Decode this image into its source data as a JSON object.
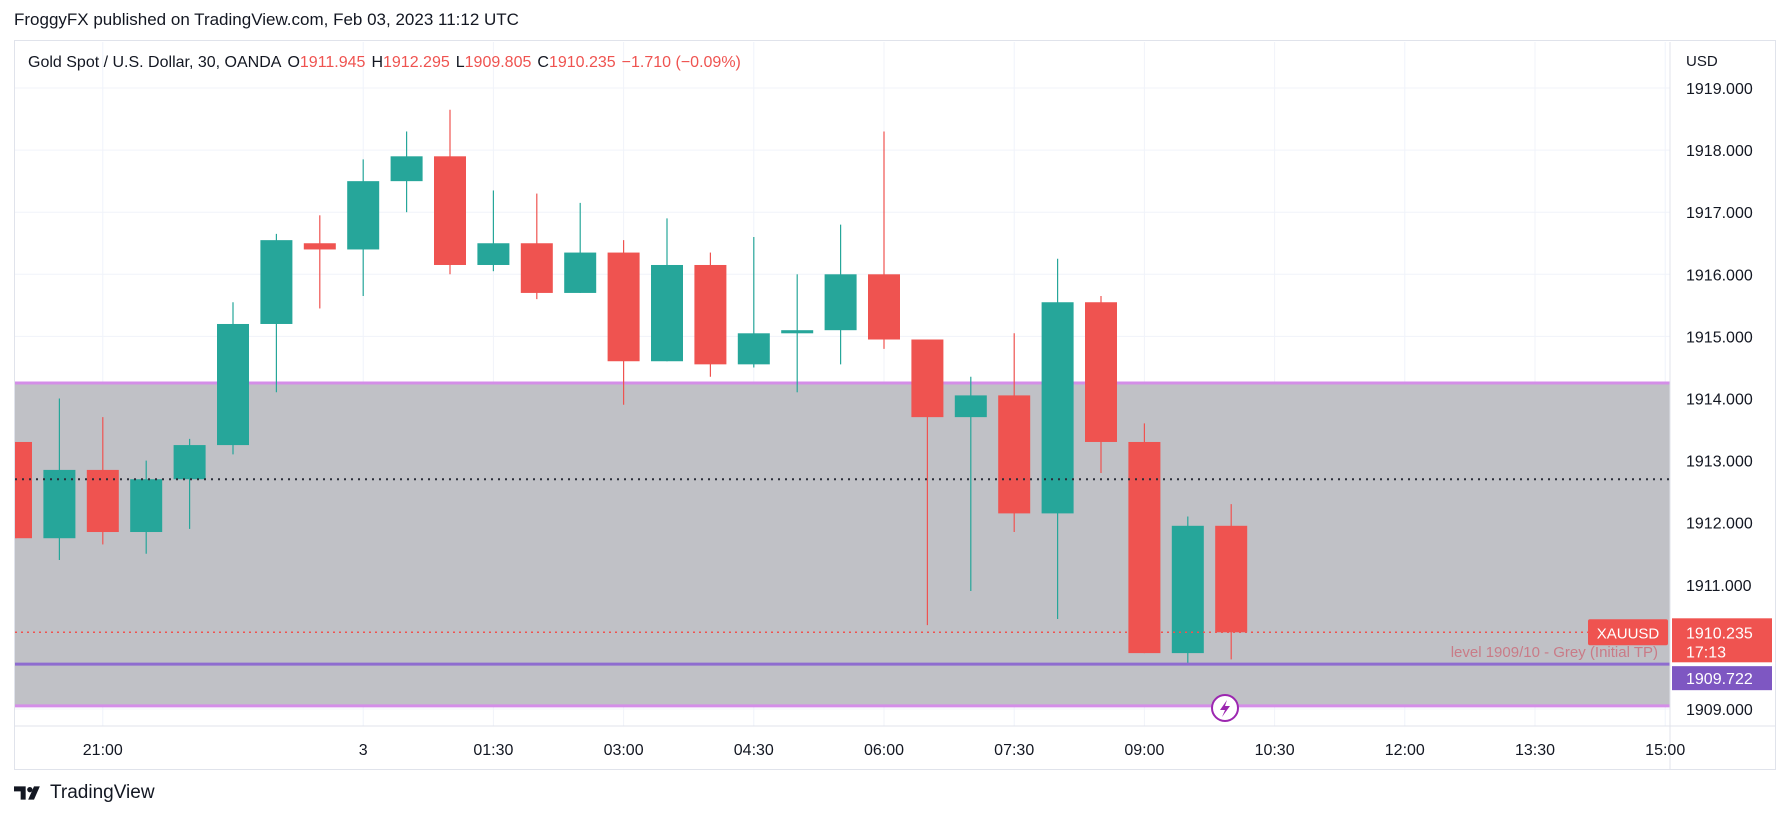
{
  "header": {
    "published_text": "FroggyFX published on TradingView.com, Feb 03, 2023 11:12 UTC"
  },
  "legend": {
    "symbol": "Gold Spot / U.S. Dollar, 30, OANDA",
    "o_label": "O",
    "o_value": "1911.945",
    "h_label": "H",
    "h_value": "1912.295",
    "l_label": "L",
    "l_value": "1909.805",
    "c_label": "C",
    "c_value": "1910.235",
    "change": "−1.710 (−0.09%)"
  },
  "footer": {
    "brand": "TradingView"
  },
  "colors": {
    "up": "#26a69a",
    "down": "#ef5350",
    "zone": "#bdbec3",
    "zone_line": "#d48ee8",
    "level_line": "#8e6ccf",
    "price_label": "#ef5350",
    "level_label": "#7e57c2"
  },
  "chart_data": {
    "type": "candlestick",
    "currency": "USD",
    "y_ticks": [
      "1919.000",
      "1918.000",
      "1917.000",
      "1916.000",
      "1915.000",
      "1914.000",
      "1913.000",
      "1912.000",
      "1911.000",
      "1909.000"
    ],
    "y_tick_values": [
      1919,
      1918,
      1917,
      1916,
      1915,
      1914,
      1913,
      1912,
      1911,
      1909
    ],
    "ylim": [
      1908.95,
      1919.18
    ],
    "x_ticks": [
      "21:00",
      "3",
      "01:30",
      "03:00",
      "04:30",
      "06:00",
      "07:30",
      "09:00",
      "10:30",
      "12:00",
      "13:30",
      "15:00"
    ],
    "x_tick_index": [
      2,
      8,
      11,
      14,
      17,
      20,
      23,
      26,
      29,
      32,
      35,
      38
    ],
    "candles": [
      {
        "o": 1913.3,
        "h": 1913.3,
        "l": 1911.75,
        "c": 1911.75
      },
      {
        "o": 1911.75,
        "h": 1914.0,
        "l": 1911.4,
        "c": 1912.85
      },
      {
        "o": 1912.85,
        "h": 1913.7,
        "l": 1911.65,
        "c": 1911.85
      },
      {
        "o": 1911.85,
        "h": 1913.0,
        "l": 1911.5,
        "c": 1912.7
      },
      {
        "o": 1912.7,
        "h": 1913.35,
        "l": 1911.9,
        "c": 1913.25
      },
      {
        "o": 1913.25,
        "h": 1915.55,
        "l": 1913.1,
        "c": 1915.2
      },
      {
        "o": 1915.2,
        "h": 1916.65,
        "l": 1914.1,
        "c": 1916.55
      },
      {
        "o": 1916.5,
        "h": 1916.95,
        "l": 1915.45,
        "c": 1916.4
      },
      {
        "o": 1916.4,
        "h": 1917.85,
        "l": 1915.65,
        "c": 1917.5
      },
      {
        "o": 1917.5,
        "h": 1918.3,
        "l": 1917.0,
        "c": 1917.9
      },
      {
        "o": 1917.9,
        "h": 1918.65,
        "l": 1916.0,
        "c": 1916.15
      },
      {
        "o": 1916.15,
        "h": 1917.35,
        "l": 1916.05,
        "c": 1916.5
      },
      {
        "o": 1916.5,
        "h": 1917.3,
        "l": 1915.6,
        "c": 1915.7
      },
      {
        "o": 1915.7,
        "h": 1917.15,
        "l": 1915.7,
        "c": 1916.35
      },
      {
        "o": 1916.35,
        "h": 1916.55,
        "l": 1913.9,
        "c": 1914.6
      },
      {
        "o": 1914.6,
        "h": 1916.9,
        "l": 1914.6,
        "c": 1916.15
      },
      {
        "o": 1916.15,
        "h": 1916.35,
        "l": 1914.35,
        "c": 1914.55
      },
      {
        "o": 1914.55,
        "h": 1916.6,
        "l": 1914.5,
        "c": 1915.05
      },
      {
        "o": 1915.05,
        "h": 1916.0,
        "l": 1914.1,
        "c": 1915.1
      },
      {
        "o": 1915.1,
        "h": 1916.8,
        "l": 1914.55,
        "c": 1916.0
      },
      {
        "o": 1916.0,
        "h": 1918.3,
        "l": 1914.8,
        "c": 1914.95
      },
      {
        "o": 1914.95,
        "h": 1914.95,
        "l": 1910.35,
        "c": 1913.7
      },
      {
        "o": 1913.7,
        "h": 1914.35,
        "l": 1910.9,
        "c": 1914.05
      },
      {
        "o": 1914.05,
        "h": 1915.05,
        "l": 1911.85,
        "c": 1912.15
      },
      {
        "o": 1912.15,
        "h": 1916.25,
        "l": 1910.45,
        "c": 1915.55
      },
      {
        "o": 1915.55,
        "h": 1915.65,
        "l": 1912.8,
        "c": 1913.3
      },
      {
        "o": 1913.3,
        "h": 1913.6,
        "l": 1909.9,
        "c": 1909.9
      },
      {
        "o": 1909.9,
        "h": 1912.1,
        "l": 1909.7,
        "c": 1911.95
      },
      {
        "o": 1911.95,
        "h": 1912.3,
        "l": 1909.8,
        "c": 1910.235
      }
    ],
    "zone": {
      "top": 1914.25,
      "bottom": 1909.05
    },
    "dotted_black_level": 1912.7,
    "current_price": 1910.235,
    "current_price_label": "1910.235",
    "countdown": "17:13",
    "symbol_tag": "XAUUSD",
    "level_line": 1909.722,
    "level_line_label": "1909.722",
    "level_text": "level 1909/10 - Grey (Initial TP)"
  }
}
